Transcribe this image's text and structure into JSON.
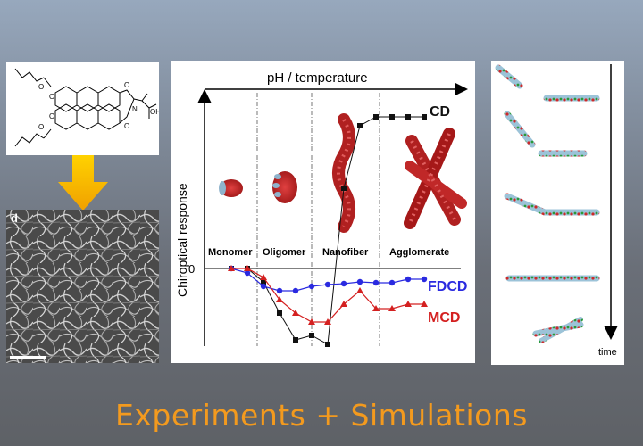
{
  "title": "Experiments + Simulations",
  "molecule": {
    "atom_labels": [
      "O",
      "O",
      "O",
      "O",
      "O",
      "O",
      "N",
      "OH"
    ]
  },
  "sem": {
    "panel_label": "d"
  },
  "chart": {
    "x_axis_label": "pH / temperature",
    "y_axis_label": "Chiroptical response",
    "zero_label": "0",
    "stages": [
      "Monomer",
      "Oligomer",
      "Nanofiber",
      "Agglomerate"
    ],
    "legend": {
      "cd": "CD",
      "fdcd": "FDCD",
      "mcd": "MCD"
    },
    "colors": {
      "cd": "#111111",
      "fdcd": "#2a2ae0",
      "mcd": "#d42020"
    }
  },
  "chart_data": {
    "type": "line",
    "xlabel": "pH / temperature",
    "ylabel": "Chiroptical response",
    "series": [
      {
        "name": "CD",
        "x": [
          1,
          2,
          3,
          4,
          5,
          6,
          7,
          8,
          9,
          10,
          11,
          12,
          13
        ],
        "y": [
          0,
          0,
          -0.15,
          -0.5,
          -0.8,
          -0.75,
          -0.85,
          0.9,
          1.6,
          1.7,
          1.7,
          1.7,
          1.7
        ]
      },
      {
        "name": "FDCD",
        "x": [
          1,
          2,
          3,
          4,
          5,
          6,
          7,
          8,
          9,
          10,
          11,
          12,
          13
        ],
        "y": [
          0,
          -0.05,
          -0.2,
          -0.25,
          -0.25,
          -0.2,
          -0.18,
          -0.17,
          -0.15,
          -0.16,
          -0.16,
          -0.12,
          -0.12
        ]
      },
      {
        "name": "MCD",
        "x": [
          1,
          2,
          3,
          4,
          5,
          6,
          7,
          8,
          9,
          10,
          11,
          12,
          13
        ],
        "y": [
          0,
          0,
          -0.1,
          -0.35,
          -0.5,
          -0.6,
          -0.6,
          -0.4,
          -0.25,
          -0.45,
          -0.45,
          -0.4,
          -0.4
        ]
      }
    ]
  },
  "simulation": {
    "time_label": "time"
  }
}
